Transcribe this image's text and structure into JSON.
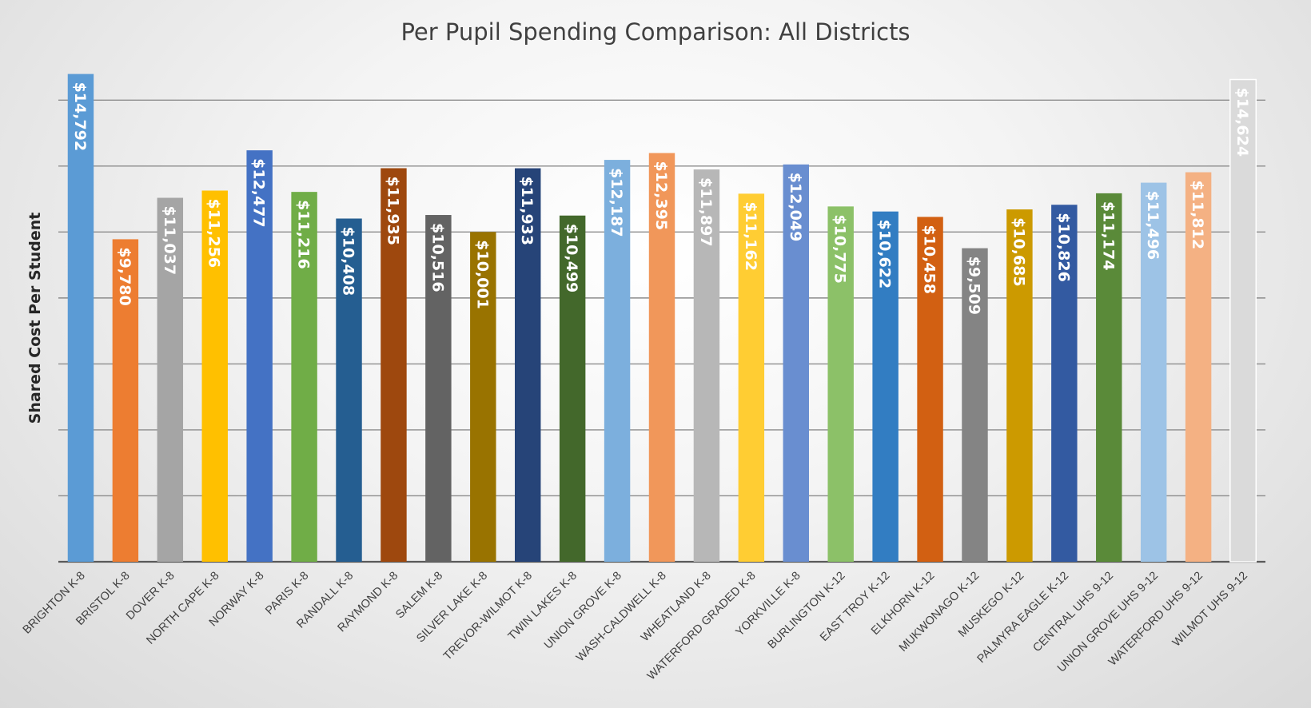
{
  "chart_data": {
    "type": "bar",
    "title": "Per Pupil Spending Comparison: All Districts",
    "xlabel": "",
    "ylabel": "Shared Cost Per Student",
    "ylim": [
      0,
      15000
    ],
    "grid_step": 2000,
    "grid": true,
    "categories": [
      "BRIGHTON K-8",
      "BRISTOL K-8",
      "DOVER K-8",
      "NORTH CAPE K-8",
      "NORWAY K-8",
      "PARIS K-8",
      "RANDALL K-8",
      "RAYMOND K-8",
      "SALEM K-8",
      "SILVER LAKE K-8",
      "TREVOR-WILMOT K-8",
      "TWIN LAKES K-8",
      "UNION GROVE K-8",
      "WASH-CALDWELL K-8",
      "WHEATLAND K-8",
      "WATERFORD GRADED K-8",
      "YORKVILLE K-8",
      "BURLINGTON K-12",
      "EAST TROY K-12",
      "ELKHORN K-12",
      "MUKWONAGO K-12",
      "MUSKEGO K-12",
      "PALMYRA EAGLE K-12",
      "CENTRAL UHS 9-12",
      "UNION GROVE UHS 9-12",
      "WATERFORD UHS 9-12",
      "WILMOT UHS 9-12"
    ],
    "values": [
      14792,
      9780,
      11037,
      11256,
      12477,
      11216,
      10408,
      11935,
      10516,
      10001,
      11933,
      10499,
      12187,
      12395,
      11897,
      11162,
      12049,
      10775,
      10622,
      10458,
      9509,
      10685,
      10826,
      11174,
      11496,
      11812,
      14624
    ],
    "data_labels": [
      "$14,792",
      "$9,780",
      "$11,037",
      "$11,256",
      "$12,477",
      "$11,216",
      "$10,408",
      "$11,935",
      "$10,516",
      "$10,001",
      "$11,933",
      "$10,499",
      "$12,187",
      "$12,395",
      "$11,897",
      "$11,162",
      "$12,049",
      "$10,775",
      "$10,622",
      "$10,458",
      "$9,509",
      "$10,685",
      "$10,826",
      "$11,174",
      "$11,496",
      "$11,812",
      "$14,624"
    ],
    "colors": [
      "#5b9bd5",
      "#ed7d31",
      "#a5a5a5",
      "#ffc000",
      "#4472c4",
      "#70ad47",
      "#255e91",
      "#9e480e",
      "#636363",
      "#997300",
      "#264478",
      "#43682b",
      "#7cafdd",
      "#f1975a",
      "#b7b7b7",
      "#ffcd33",
      "#698ed0",
      "#8cc168",
      "#327dc2",
      "#d26012",
      "#848484",
      "#cc9a00",
      "#335aa1",
      "#5a8a39",
      "#9dc3e6",
      "#f4b183",
      "#dadada"
    ]
  }
}
